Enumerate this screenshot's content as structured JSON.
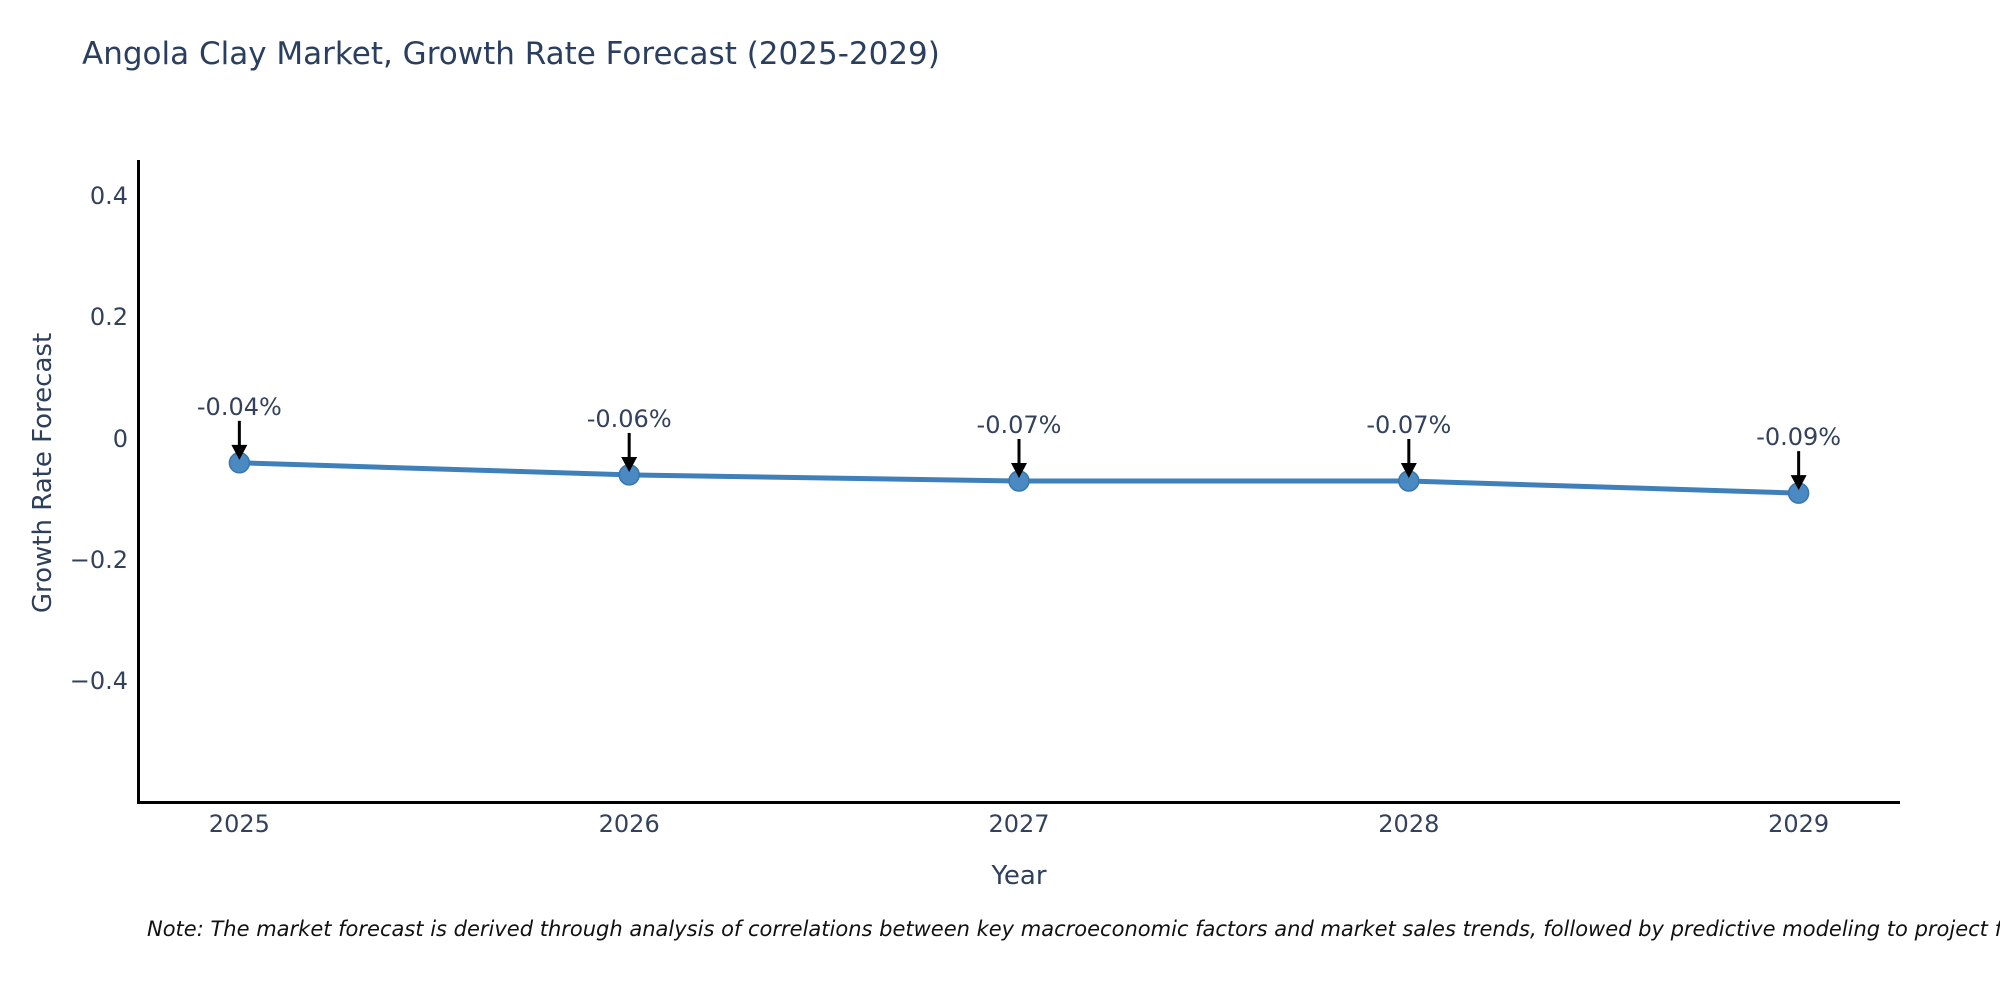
{
  "chart_data": {
    "type": "line",
    "title": "Angola Clay Market, Growth Rate Forecast (2025-2029)",
    "xlabel": "Year",
    "ylabel": "Growth Rate Forecast",
    "x": [
      2025,
      2026,
      2027,
      2028,
      2029
    ],
    "x_labels": [
      "2025",
      "2026",
      "2027",
      "2028",
      "2029"
    ],
    "series": [
      {
        "name": "Growth Rate Forecast",
        "values": [
          -0.04,
          -0.06,
          -0.07,
          -0.07,
          -0.09
        ]
      }
    ],
    "point_labels": [
      "-0.04%",
      "-0.06%",
      "-0.07%",
      "-0.07%",
      "-0.09%"
    ],
    "yticks": [
      {
        "label": "0.4",
        "value": 0.4
      },
      {
        "label": "0.2",
        "value": 0.2
      },
      {
        "label": "0",
        "value": 0
      },
      {
        "label": "−0.2",
        "value": -0.2
      },
      {
        "label": "−0.4",
        "value": -0.4
      }
    ],
    "xlim": [
      2024.74,
      2029.26
    ],
    "ylim": [
      -0.6,
      0.46
    ],
    "grid": false,
    "legend": "none",
    "annotation_style": "value label with black down-arrow to each marker",
    "colors": {
      "line": "#3f80ba",
      "marker": "#4a89c2",
      "marker_edge": "#3877ac",
      "arrow": "#000000",
      "axis": "#000000",
      "title_text": "#2a3f5f",
      "tick_text": "#33415c"
    },
    "note": "Note: The market forecast is derived through analysis of correlations between key macroeconomic factors and market sales trends, followed by predictive modeling to project future sales."
  }
}
